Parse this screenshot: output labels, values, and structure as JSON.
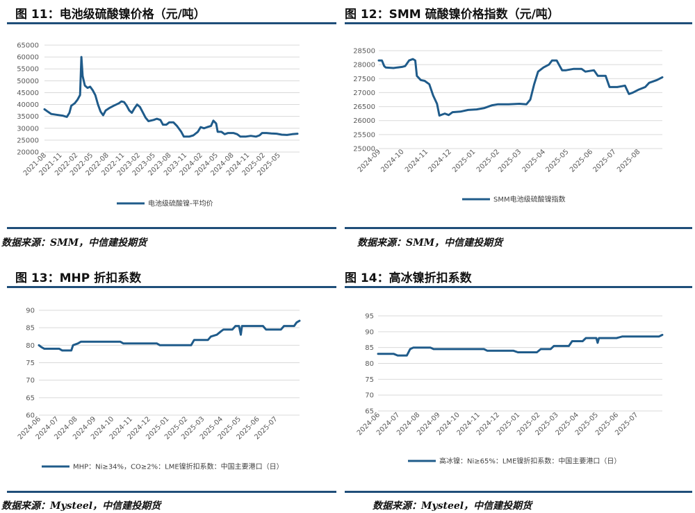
{
  "figures": [
    {
      "title": "图 11：电池级硫酸镍价格（元/吨）",
      "source": "数据来源：SMM，中信建投期货"
    },
    {
      "title": "图 12：SMM 硫酸镍价格指数（元/吨）",
      "source": "数据来源：SMM，中信建投期货"
    },
    {
      "title": "图 13：MHP 折扣系数",
      "source": "数据来源：Mysteel，中信建投期货"
    },
    {
      "title": "图 14：高冰镍折扣系数",
      "source": "数据来源：Mysteel，中信建投期货"
    }
  ],
  "colors": {
    "series": "#1f5b8a",
    "rule": "#1f4e79",
    "grid": "#d9d9d9"
  },
  "chart_data": [
    {
      "type": "line",
      "title": "图 11：电池级硫酸镍价格（元/吨）",
      "x_tick_labels": [
        "2021-08",
        "2021-11",
        "2022-02",
        "2022-05",
        "2022-08",
        "2022-11",
        "2023-02",
        "2023-05",
        "2023-08",
        "2023-11",
        "2024-02",
        "2024-05",
        "2024-08",
        "2024-11",
        "2025-02",
        "2025-05"
      ],
      "y_tick_labels": [
        "20000",
        "25000",
        "30000",
        "35000",
        "40000",
        "45000",
        "50000",
        "55000",
        "60000",
        "65000"
      ],
      "ylim": [
        20000,
        65000
      ],
      "x_start": "2021-08",
      "x_end": "2025-09",
      "legend": "top-to-bottom: bottom",
      "series": [
        {
          "name": "电池级硫酸镍-平均价",
          "points": [
            [
              "2021-08-01",
              38000
            ],
            [
              "2021-08-20",
              37000
            ],
            [
              "2021-09-10",
              36000
            ],
            [
              "2021-10-10",
              35700
            ],
            [
              "2021-11-15",
              35300
            ],
            [
              "2021-12-10",
              34800
            ],
            [
              "2021-12-25",
              36500
            ],
            [
              "2022-01-05",
              39500
            ],
            [
              "2022-01-25",
              40500
            ],
            [
              "2022-02-10",
              42000
            ],
            [
              "2022-02-25",
              44000
            ],
            [
              "2022-03-05",
              60000
            ],
            [
              "2022-03-12",
              52000
            ],
            [
              "2022-03-25",
              48000
            ],
            [
              "2022-04-10",
              47000
            ],
            [
              "2022-04-25",
              47500
            ],
            [
              "2022-05-10",
              46000
            ],
            [
              "2022-05-25",
              44000
            ],
            [
              "2022-06-10",
              40000
            ],
            [
              "2022-06-25",
              37000
            ],
            [
              "2022-07-10",
              35500
            ],
            [
              "2022-07-25",
              37500
            ],
            [
              "2022-08-15",
              38500
            ],
            [
              "2022-09-10",
              39500
            ],
            [
              "2022-10-10",
              40500
            ],
            [
              "2022-10-25",
              41300
            ],
            [
              "2022-11-10",
              41000
            ],
            [
              "2022-11-25",
              39500
            ],
            [
              "2022-12-10",
              37500
            ],
            [
              "2022-12-25",
              36500
            ],
            [
              "2023-01-10",
              38500
            ],
            [
              "2023-01-25",
              40000
            ],
            [
              "2023-02-10",
              39000
            ],
            [
              "2023-02-25",
              37000
            ],
            [
              "2023-03-15",
              34500
            ],
            [
              "2023-04-01",
              33000
            ],
            [
              "2023-05-01",
              33500
            ],
            [
              "2023-05-20",
              34000
            ],
            [
              "2023-06-10",
              33500
            ],
            [
              "2023-06-25",
              31500
            ],
            [
              "2023-07-15",
              31500
            ],
            [
              "2023-08-01",
              32500
            ],
            [
              "2023-08-25",
              32500
            ],
            [
              "2023-09-15",
              31000
            ],
            [
              "2023-10-10",
              28500
            ],
            [
              "2023-10-25",
              26500
            ],
            [
              "2023-11-25",
              26500
            ],
            [
              "2023-12-20",
              27000
            ],
            [
              "2024-01-15",
              28500
            ],
            [
              "2024-02-01",
              30500
            ],
            [
              "2024-02-20",
              30000
            ],
            [
              "2024-03-10",
              30500
            ],
            [
              "2024-04-01",
              31000
            ],
            [
              "2024-04-15",
              33200
            ],
            [
              "2024-05-01",
              32000
            ],
            [
              "2024-05-10",
              28500
            ],
            [
              "2024-06-01",
              28500
            ],
            [
              "2024-06-20",
              27500
            ],
            [
              "2024-07-10",
              28000
            ],
            [
              "2024-08-10",
              28000
            ],
            [
              "2024-09-01",
              27500
            ],
            [
              "2024-09-20",
              26500
            ],
            [
              "2024-10-20",
              26500
            ],
            [
              "2024-11-20",
              26800
            ],
            [
              "2024-12-20",
              26500
            ],
            [
              "2025-01-10",
              27000
            ],
            [
              "2025-01-25",
              28000
            ],
            [
              "2025-02-20",
              28000
            ],
            [
              "2025-03-20",
              27800
            ],
            [
              "2025-04-20",
              27700
            ],
            [
              "2025-05-20",
              27300
            ],
            [
              "2025-06-20",
              27200
            ],
            [
              "2025-07-20",
              27500
            ],
            [
              "2025-08-20",
              27700
            ]
          ]
        }
      ]
    },
    {
      "type": "line",
      "title": "图 12：SMM 硫酸镍价格指数（元/吨）",
      "x_tick_labels": [
        "2024-09",
        "2024-10",
        "2024-11",
        "2024-12",
        "2025-01",
        "2025-02",
        "2025-03",
        "2025-04",
        "2025-05",
        "2025-06",
        "2025-07",
        "2025-08"
      ],
      "y_tick_labels": [
        "25000",
        "25500",
        "26000",
        "26500",
        "27000",
        "27500",
        "28000",
        "28500"
      ],
      "ylim": [
        25000,
        28500
      ],
      "x_start": "2024-09-01",
      "x_end": "2025-09-01",
      "series": [
        {
          "name": "SMM电池级硫酸镍指数",
          "points": [
            [
              "2024-09-01",
              28150
            ],
            [
              "2024-09-05",
              28150
            ],
            [
              "2024-09-08",
              27950
            ],
            [
              "2024-09-10",
              27900
            ],
            [
              "2024-09-20",
              27880
            ],
            [
              "2024-09-25",
              27900
            ],
            [
              "2024-10-01",
              27920
            ],
            [
              "2024-10-05",
              27950
            ],
            [
              "2024-10-10",
              28150
            ],
            [
              "2024-10-15",
              28200
            ],
            [
              "2024-10-18",
              28150
            ],
            [
              "2024-10-20",
              27600
            ],
            [
              "2024-10-25",
              27450
            ],
            [
              "2024-10-30",
              27420
            ],
            [
              "2024-11-05",
              27300
            ],
            [
              "2024-11-10",
              26900
            ],
            [
              "2024-11-15",
              26600
            ],
            [
              "2024-11-18",
              26180
            ],
            [
              "2024-11-25",
              26250
            ],
            [
              "2024-11-30",
              26200
            ],
            [
              "2024-12-05",
              26300
            ],
            [
              "2024-12-15",
              26320
            ],
            [
              "2024-12-25",
              26380
            ],
            [
              "2025-01-05",
              26400
            ],
            [
              "2025-01-15",
              26450
            ],
            [
              "2025-01-25",
              26550
            ],
            [
              "2025-02-01",
              26580
            ],
            [
              "2025-02-15",
              26580
            ],
            [
              "2025-03-01",
              26600
            ],
            [
              "2025-03-10",
              26580
            ],
            [
              "2025-03-15",
              26750
            ],
            [
              "2025-03-20",
              27300
            ],
            [
              "2025-03-25",
              27750
            ],
            [
              "2025-04-01",
              27900
            ],
            [
              "2025-04-08",
              28000
            ],
            [
              "2025-04-12",
              28150
            ],
            [
              "2025-04-18",
              28150
            ],
            [
              "2025-04-22",
              27950
            ],
            [
              "2025-04-25",
              27800
            ],
            [
              "2025-04-30",
              27800
            ],
            [
              "2025-05-10",
              27850
            ],
            [
              "2025-05-20",
              27850
            ],
            [
              "2025-05-25",
              27750
            ],
            [
              "2025-06-05",
              27800
            ],
            [
              "2025-06-10",
              27600
            ],
            [
              "2025-06-20",
              27600
            ],
            [
              "2025-06-25",
              27200
            ],
            [
              "2025-07-05",
              27200
            ],
            [
              "2025-07-15",
              27250
            ],
            [
              "2025-07-20",
              26950
            ],
            [
              "2025-07-25",
              27000
            ],
            [
              "2025-08-01",
              27100
            ],
            [
              "2025-08-10",
              27200
            ],
            [
              "2025-08-15",
              27350
            ],
            [
              "2025-08-25",
              27450
            ],
            [
              "2025-09-01",
              27550
            ]
          ]
        }
      ]
    },
    {
      "type": "line",
      "title": "图 13：MHP 折扣系数",
      "x_tick_labels": [
        "2024-06",
        "2024-07",
        "2024-08",
        "2024-09",
        "2024-10",
        "2024-11",
        "2024-12",
        "2025-01",
        "2025-02",
        "2025-03",
        "2025-04",
        "2025-05",
        "2025-06",
        "2025-07"
      ],
      "y_tick_labels": [
        "60",
        "65",
        "70",
        "75",
        "80",
        "85",
        "90"
      ],
      "ylim": [
        60,
        90
      ],
      "x_start": "2024-06-01",
      "x_end": "2025-08-10",
      "series": [
        {
          "name": "MHP：Ni≥34%，CO≥2%：LME镍折扣系数：中国主要港口（日）",
          "points": [
            [
              "2024-06-01",
              80
            ],
            [
              "2024-06-05",
              79.5
            ],
            [
              "2024-06-10",
              79
            ],
            [
              "2024-06-25",
              79
            ],
            [
              "2024-07-05",
              79
            ],
            [
              "2024-07-10",
              78.5
            ],
            [
              "2024-07-25",
              78.5
            ],
            [
              "2024-07-28",
              80
            ],
            [
              "2024-08-05",
              80.5
            ],
            [
              "2024-08-10",
              81
            ],
            [
              "2024-08-31",
              81
            ],
            [
              "2024-10-15",
              81
            ],
            [
              "2024-10-20",
              80.5
            ],
            [
              "2024-12-15",
              80.5
            ],
            [
              "2024-12-20",
              80
            ],
            [
              "2025-02-10",
              80
            ],
            [
              "2025-02-15",
              81.5
            ],
            [
              "2025-03-10",
              81.5
            ],
            [
              "2025-03-15",
              82.5
            ],
            [
              "2025-03-25",
              83
            ],
            [
              "2025-04-01",
              84
            ],
            [
              "2025-04-05",
              84.5
            ],
            [
              "2025-04-20",
              84.5
            ],
            [
              "2025-04-25",
              85.5
            ],
            [
              "2025-05-01",
              85.5
            ],
            [
              "2025-05-04",
              83
            ],
            [
              "2025-05-06",
              85.5
            ],
            [
              "2025-06-10",
              85.5
            ],
            [
              "2025-06-15",
              84.5
            ],
            [
              "2025-07-10",
              84.5
            ],
            [
              "2025-07-15",
              85.5
            ],
            [
              "2025-08-01",
              85.5
            ],
            [
              "2025-08-05",
              86.5
            ],
            [
              "2025-08-10",
              87
            ]
          ]
        }
      ]
    },
    {
      "type": "line",
      "title": "图 14：高冰镍折扣系数",
      "x_tick_labels": [
        "2024-06",
        "2024-07",
        "2024-08",
        "2024-09",
        "2024-10",
        "2024-11",
        "2024-12",
        "2025-01",
        "2025-02",
        "2025-03",
        "2025-04",
        "2025-05",
        "2025-06",
        "2025-07"
      ],
      "y_tick_labels": [
        "65",
        "70",
        "75",
        "80",
        "85",
        "90",
        "95"
      ],
      "ylim": [
        65,
        95
      ],
      "x_start": "2024-06-01",
      "x_end": "2025-08-10",
      "series": [
        {
          "name": "高冰镍：Ni≥65%：LME镍折扣系数：中国主要港口（日）",
          "points": [
            [
              "2024-06-01",
              83
            ],
            [
              "2024-06-25",
              83
            ],
            [
              "2024-07-01",
              82.5
            ],
            [
              "2024-07-15",
              82.5
            ],
            [
              "2024-07-20",
              84.5
            ],
            [
              "2024-07-25",
              85
            ],
            [
              "2024-08-20",
              85
            ],
            [
              "2024-08-25",
              84.5
            ],
            [
              "2024-11-10",
              84.5
            ],
            [
              "2024-11-15",
              84
            ],
            [
              "2024-12-25",
              84
            ],
            [
              "2025-01-01",
              83.5
            ],
            [
              "2025-01-30",
              83.5
            ],
            [
              "2025-02-05",
              84.5
            ],
            [
              "2025-02-20",
              84.5
            ],
            [
              "2025-02-25",
              85.5
            ],
            [
              "2025-03-20",
              85.5
            ],
            [
              "2025-03-25",
              87
            ],
            [
              "2025-04-10",
              87
            ],
            [
              "2025-04-15",
              88
            ],
            [
              "2025-05-01",
              88
            ],
            [
              "2025-05-03",
              86.5
            ],
            [
              "2025-05-05",
              88
            ],
            [
              "2025-06-01",
              88
            ],
            [
              "2025-06-10",
              88.5
            ],
            [
              "2025-08-05",
              88.5
            ],
            [
              "2025-08-10",
              89
            ]
          ]
        }
      ]
    }
  ]
}
